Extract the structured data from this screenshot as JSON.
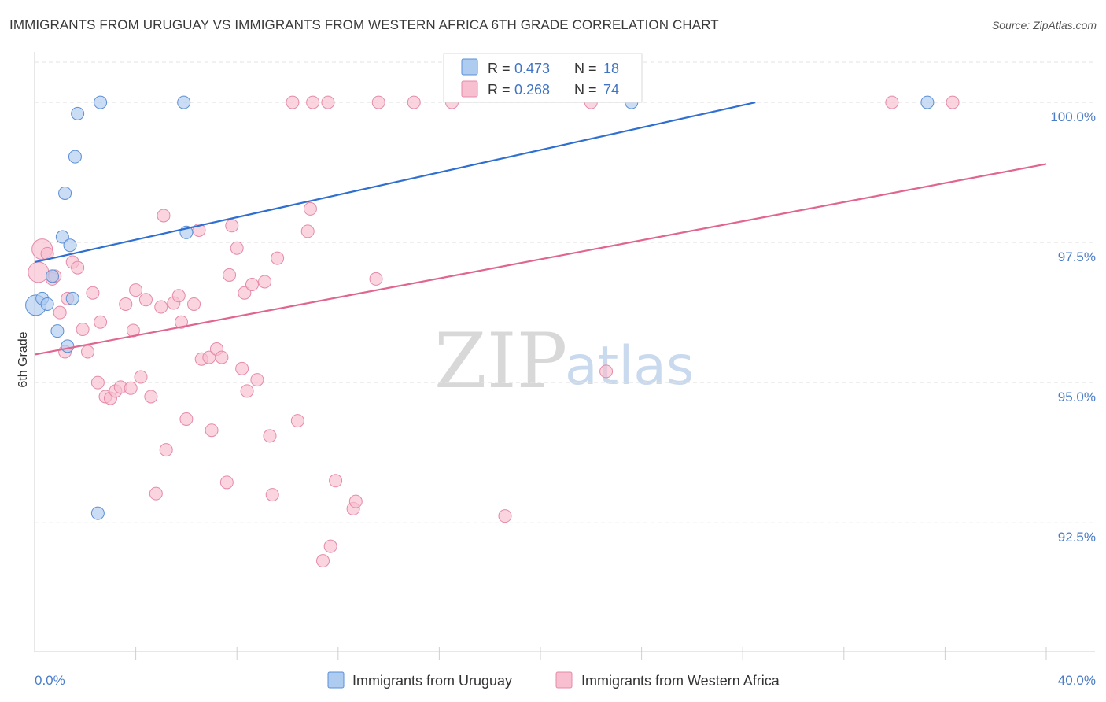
{
  "header": {
    "title": "IMMIGRANTS FROM URUGUAY VS IMMIGRANTS FROM WESTERN AFRICA 6TH GRADE CORRELATION CHART",
    "source": "Source: ZipAtlas.com"
  },
  "watermark": {
    "zip": "ZIP",
    "atlas": "atlas"
  },
  "colors": {
    "uruguay_fill": "#aecbf0",
    "uruguay_stroke": "#5b8fd6",
    "uruguay_line": "#2f6fd0",
    "wafrica_fill": "#f7bfd0",
    "wafrica_stroke": "#e58aa8",
    "wafrica_line": "#e0658f",
    "axis_label": "#4a7cc7",
    "grid": "#e3e3e3"
  },
  "legend": {
    "rows": [
      {
        "r_label": "R = ",
        "r_value": "0.473",
        "n_label": "N = ",
        "n_value": "18"
      },
      {
        "r_label": "R = ",
        "r_value": "0.268",
        "n_label": "N = ",
        "n_value": "74"
      }
    ]
  },
  "chart_data": {
    "type": "scatter",
    "title": "IMMIGRANTS FROM URUGUAY VS IMMIGRANTS FROM WESTERN AFRICA 6TH GRADE CORRELATION CHART",
    "xlabel": "",
    "ylabel": "6th Grade",
    "xlim": [
      0,
      40
    ],
    "ylim": [
      90.2,
      100.9
    ],
    "x_tick_labels": [
      "0.0%",
      "40.0%"
    ],
    "y_ticks": [
      92.5,
      95.0,
      97.5,
      100.0
    ],
    "y_tick_labels": [
      "92.5%",
      "95.0%",
      "97.5%",
      "100.0%"
    ],
    "grid": true,
    "legend_position": "top-center",
    "series": [
      {
        "name": "Immigrants from Uruguay",
        "R": 0.473,
        "N": 18,
        "trend": {
          "x": [
            0,
            28.5
          ],
          "y": [
            97.15,
            100.0
          ]
        },
        "points": [
          {
            "x": 0.05,
            "y": 96.38,
            "big": true
          },
          {
            "x": 0.3,
            "y": 96.5
          },
          {
            "x": 0.5,
            "y": 96.4
          },
          {
            "x": 0.7,
            "y": 96.9
          },
          {
            "x": 0.9,
            "y": 95.92
          },
          {
            "x": 1.1,
            "y": 97.6
          },
          {
            "x": 1.2,
            "y": 98.38
          },
          {
            "x": 1.4,
            "y": 97.45
          },
          {
            "x": 1.3,
            "y": 95.65
          },
          {
            "x": 1.5,
            "y": 96.5
          },
          {
            "x": 1.6,
            "y": 99.03
          },
          {
            "x": 1.7,
            "y": 99.8
          },
          {
            "x": 2.6,
            "y": 100.0
          },
          {
            "x": 5.9,
            "y": 100.0
          },
          {
            "x": 6.0,
            "y": 97.68
          },
          {
            "x": 2.5,
            "y": 92.67
          },
          {
            "x": 23.6,
            "y": 100.0
          },
          {
            "x": 35.3,
            "y": 100.0
          }
        ]
      },
      {
        "name": "Immigrants from Western Africa",
        "R": 0.268,
        "N": 74,
        "trend": {
          "x": [
            0,
            40
          ],
          "y": [
            95.5,
            98.9
          ]
        },
        "points": [
          {
            "x": 0.15,
            "y": 96.97,
            "big": true
          },
          {
            "x": 0.3,
            "y": 97.38,
            "big": true
          },
          {
            "x": 0.5,
            "y": 97.3
          },
          {
            "x": 0.7,
            "y": 96.85
          },
          {
            "x": 0.8,
            "y": 96.9
          },
          {
            "x": 1.0,
            "y": 96.25
          },
          {
            "x": 1.2,
            "y": 95.55
          },
          {
            "x": 1.3,
            "y": 96.5
          },
          {
            "x": 1.5,
            "y": 97.15
          },
          {
            "x": 1.7,
            "y": 97.05
          },
          {
            "x": 1.9,
            "y": 95.95
          },
          {
            "x": 2.1,
            "y": 95.55
          },
          {
            "x": 2.3,
            "y": 96.6
          },
          {
            "x": 2.5,
            "y": 95.0
          },
          {
            "x": 2.6,
            "y": 96.08
          },
          {
            "x": 2.8,
            "y": 94.75
          },
          {
            "x": 3.0,
            "y": 94.72
          },
          {
            "x": 3.2,
            "y": 94.85
          },
          {
            "x": 3.4,
            "y": 94.92
          },
          {
            "x": 3.6,
            "y": 96.4
          },
          {
            "x": 3.8,
            "y": 94.9
          },
          {
            "x": 3.9,
            "y": 95.93
          },
          {
            "x": 4.0,
            "y": 96.65
          },
          {
            "x": 4.2,
            "y": 95.1
          },
          {
            "x": 4.4,
            "y": 96.48
          },
          {
            "x": 4.6,
            "y": 94.75
          },
          {
            "x": 4.8,
            "y": 93.02
          },
          {
            "x": 5.0,
            "y": 96.35
          },
          {
            "x": 5.1,
            "y": 97.98
          },
          {
            "x": 5.2,
            "y": 93.8
          },
          {
            "x": 5.5,
            "y": 96.42
          },
          {
            "x": 5.7,
            "y": 96.55
          },
          {
            "x": 5.8,
            "y": 96.08
          },
          {
            "x": 6.0,
            "y": 94.35
          },
          {
            "x": 6.3,
            "y": 96.4
          },
          {
            "x": 6.5,
            "y": 97.72
          },
          {
            "x": 6.6,
            "y": 95.42
          },
          {
            "x": 6.9,
            "y": 95.45
          },
          {
            "x": 7.0,
            "y": 94.15
          },
          {
            "x": 7.2,
            "y": 95.6
          },
          {
            "x": 7.4,
            "y": 95.45
          },
          {
            "x": 7.6,
            "y": 93.22
          },
          {
            "x": 7.7,
            "y": 96.92
          },
          {
            "x": 7.8,
            "y": 97.8
          },
          {
            "x": 8.0,
            "y": 97.4
          },
          {
            "x": 8.2,
            "y": 95.25
          },
          {
            "x": 8.3,
            "y": 96.6
          },
          {
            "x": 8.4,
            "y": 94.85
          },
          {
            "x": 8.6,
            "y": 96.75
          },
          {
            "x": 8.8,
            "y": 95.05
          },
          {
            "x": 9.1,
            "y": 96.8
          },
          {
            "x": 9.3,
            "y": 94.05
          },
          {
            "x": 9.4,
            "y": 93.0
          },
          {
            "x": 9.6,
            "y": 97.22
          },
          {
            "x": 10.4,
            "y": 94.32
          },
          {
            "x": 10.8,
            "y": 97.7
          },
          {
            "x": 10.9,
            "y": 98.1
          },
          {
            "x": 11.4,
            "y": 91.82
          },
          {
            "x": 11.7,
            "y": 92.08
          },
          {
            "x": 11.9,
            "y": 93.25
          },
          {
            "x": 12.6,
            "y": 92.75
          },
          {
            "x": 12.7,
            "y": 92.88
          },
          {
            "x": 13.5,
            "y": 96.85
          },
          {
            "x": 18.6,
            "y": 92.62
          },
          {
            "x": 22.6,
            "y": 95.2
          },
          {
            "x": 10.2,
            "y": 100.0
          },
          {
            "x": 11.0,
            "y": 100.0
          },
          {
            "x": 11.6,
            "y": 100.0
          },
          {
            "x": 13.6,
            "y": 100.0
          },
          {
            "x": 15.0,
            "y": 100.0
          },
          {
            "x": 16.5,
            "y": 100.0
          },
          {
            "x": 22.0,
            "y": 100.0
          },
          {
            "x": 33.9,
            "y": 100.0
          },
          {
            "x": 36.3,
            "y": 100.0
          }
        ]
      }
    ]
  }
}
